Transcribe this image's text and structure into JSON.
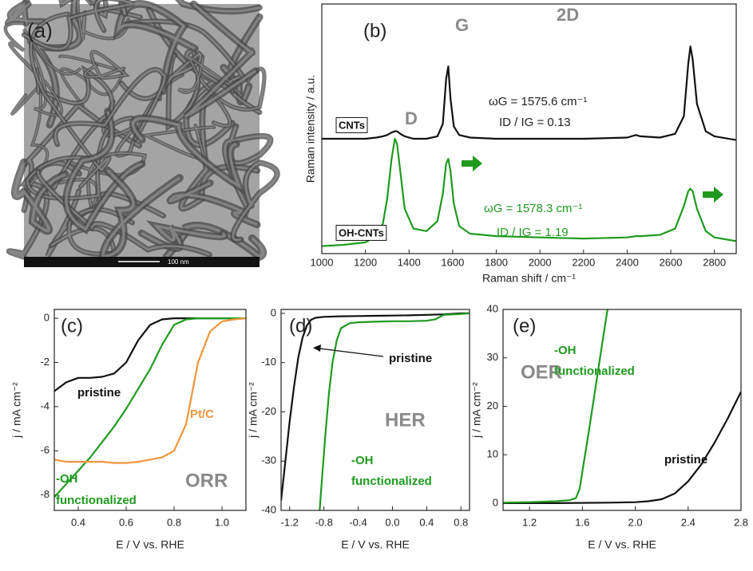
{
  "image": {
    "panel_label": "(a)",
    "scale_bar": "100 nm"
  },
  "chart_data": [
    {
      "type": "line",
      "panel_label": "(b)",
      "x_label": "Raman shift / cm⁻¹",
      "y_label": "Raman intensity  /  a.u.",
      "xlim": [
        1000,
        2900
      ],
      "ylim": [
        0,
        100
      ],
      "xticks": [
        1000,
        1200,
        1400,
        1600,
        1800,
        2000,
        2200,
        2400,
        2600,
        2800
      ],
      "annotations": [
        "D",
        "G",
        "2D",
        "ωG = 1575.6 cm⁻¹",
        "ID / IG = 0.13",
        "ωG = 1578.3 cm⁻¹",
        "ID / IG = 1.19"
      ],
      "x": [
        1000,
        1100,
        1200,
        1250,
        1280,
        1300,
        1320,
        1335,
        1345,
        1360,
        1380,
        1420,
        1480,
        1530,
        1555,
        1570,
        1580,
        1590,
        1605,
        1630,
        1680,
        1800,
        2000,
        2200,
        2400,
        2440,
        2460,
        2550,
        2620,
        2660,
        2680,
        2690,
        2700,
        2720,
        2760,
        2800,
        2900
      ],
      "series": [
        {
          "name": "CNTs",
          "color": "#111111",
          "values": [
            46,
            46,
            46,
            46.5,
            47,
            47.5,
            48.5,
            49,
            49,
            48,
            47,
            46,
            46,
            47,
            52,
            70,
            75,
            62,
            51,
            47.5,
            46.5,
            46,
            46,
            46,
            46.5,
            47.5,
            47,
            46.5,
            48,
            55,
            76,
            83,
            78,
            60,
            49,
            47,
            45.5
          ]
        },
        {
          "name": "OH-CNTs",
          "color": "#1f9a1f",
          "values": [
            3,
            3.5,
            4.5,
            7,
            12,
            22,
            38,
            46,
            44,
            33,
            18,
            10,
            9,
            13,
            24,
            36,
            38,
            33,
            20,
            11,
            8,
            7,
            6.5,
            6,
            6.5,
            7,
            7,
            7.5,
            10,
            19,
            25,
            26,
            25,
            18,
            9,
            6.5,
            5
          ]
        }
      ]
    },
    {
      "type": "line",
      "panel_label": "(c)",
      "x_label": "E  /  V vs. RHE",
      "y_label": "j  /  mA cm⁻²",
      "xlim": [
        0.3,
        1.1
      ],
      "ylim": [
        -8.7,
        0.4
      ],
      "xticks": [
        0.4,
        0.6,
        0.8,
        {
          "value": 1,
          "label": "1.0"
        }
      ],
      "yticks": [
        0,
        -2,
        -4,
        -6,
        -8
      ],
      "annotations": [
        "-OH",
        "functionalized",
        "ORR"
      ],
      "x": [
        0.3,
        0.35,
        0.4,
        0.45,
        0.5,
        0.55,
        0.6,
        0.65,
        0.7,
        0.75,
        0.8,
        0.85,
        0.9,
        0.95,
        1.0,
        1.05,
        1.1
      ],
      "series": [
        {
          "name": "pristine",
          "color": "#111111",
          "values": [
            -3.3,
            -2.9,
            -2.7,
            -2.7,
            -2.65,
            -2.5,
            -2.0,
            -1.0,
            -0.3,
            -0.05,
            0,
            0,
            0,
            0,
            0,
            0,
            0
          ]
        },
        {
          "color": "#1f9a1f",
          "values": [
            -8.1,
            -7.5,
            -6.9,
            -6.3,
            -5.6,
            -4.9,
            -4.1,
            -3.2,
            -2.3,
            -1.2,
            -0.3,
            -0.05,
            0,
            0,
            0,
            0,
            0
          ]
        },
        {
          "name": "Pt/C",
          "color": "#f0963c",
          "values": [
            -6.4,
            -6.5,
            -6.5,
            -6.5,
            -6.5,
            -6.55,
            -6.55,
            -6.5,
            -6.4,
            -6.3,
            -6.0,
            -4.8,
            -2.0,
            -0.6,
            -0.15,
            -0.05,
            0
          ]
        }
      ]
    },
    {
      "type": "line",
      "panel_label": "(d)",
      "x_label": "E  /  V vs. RHE",
      "y_label": "j  /  mA cm⁻²",
      "xlim": [
        -1.3,
        0.9
      ],
      "ylim": [
        -40,
        0.8
      ],
      "xticks": [
        -1.2,
        -0.8,
        -0.4,
        {
          "value": 0,
          "label": "0.0"
        },
        0.4,
        0.8
      ],
      "yticks": [
        0,
        -10,
        -20,
        -30,
        -40
      ],
      "annotations": [
        "HER",
        "-OH",
        "functionalized"
      ],
      "series": [
        {
          "name": "pristine",
          "color": "#111111",
          "x": [
            -1.3,
            -1.25,
            -1.2,
            -1.15,
            -1.1,
            -1.05,
            -1.0,
            -0.95,
            -0.9,
            -0.8,
            -0.6,
            -0.4,
            -0.2,
            0,
            0.2,
            0.4,
            0.6,
            0.8,
            0.9
          ],
          "values": [
            -38,
            -30,
            -22,
            -15,
            -9,
            -5,
            -2.5,
            -1.3,
            -0.9,
            -0.7,
            -0.6,
            -0.55,
            -0.5,
            -0.45,
            -0.4,
            -0.3,
            -0.2,
            0,
            0
          ]
        },
        {
          "color": "#1f9a1f",
          "x": [
            -0.85,
            -0.82,
            -0.78,
            -0.74,
            -0.7,
            -0.65,
            -0.6,
            -0.5,
            -0.4,
            -0.2,
            0,
            0.2,
            0.4,
            0.5,
            0.6,
            0.8,
            0.9
          ],
          "values": [
            -40,
            -33,
            -24,
            -16,
            -10,
            -5.5,
            -3,
            -2,
            -1.8,
            -1.7,
            -1.6,
            -1.6,
            -1.5,
            -1.2,
            -0.3,
            -0.1,
            0
          ]
        }
      ]
    },
    {
      "type": "line",
      "panel_label": "(e)",
      "x_label": "E  /  V vs. RHE",
      "y_label": "j  /  mA cm⁻²",
      "xlim": [
        1.0,
        2.8
      ],
      "ylim": [
        -1.5,
        40
      ],
      "xticks": [
        1.2,
        1.6,
        {
          "value": 2,
          "label": "2.0"
        },
        2.4,
        2.8
      ],
      "yticks": [
        0,
        10,
        20,
        30,
        40
      ],
      "annotations": [
        "OER",
        "-OH",
        "functionalized"
      ],
      "series": [
        {
          "name": "pristine",
          "color": "#111111",
          "x": [
            1.0,
            1.4,
            1.8,
            2.0,
            2.1,
            2.2,
            2.3,
            2.4,
            2.5,
            2.6,
            2.7,
            2.8
          ],
          "values": [
            0,
            0,
            0.1,
            0.2,
            0.4,
            0.8,
            2,
            4.5,
            8,
            12.5,
            17.5,
            23
          ]
        },
        {
          "color": "#1f9a1f",
          "x": [
            1.0,
            1.2,
            1.4,
            1.5,
            1.55,
            1.58,
            1.6,
            1.65,
            1.7,
            1.75,
            1.79
          ],
          "values": [
            0.1,
            0.2,
            0.4,
            0.6,
            1,
            3,
            6.5,
            15,
            24,
            33,
            40
          ]
        }
      ]
    }
  ]
}
